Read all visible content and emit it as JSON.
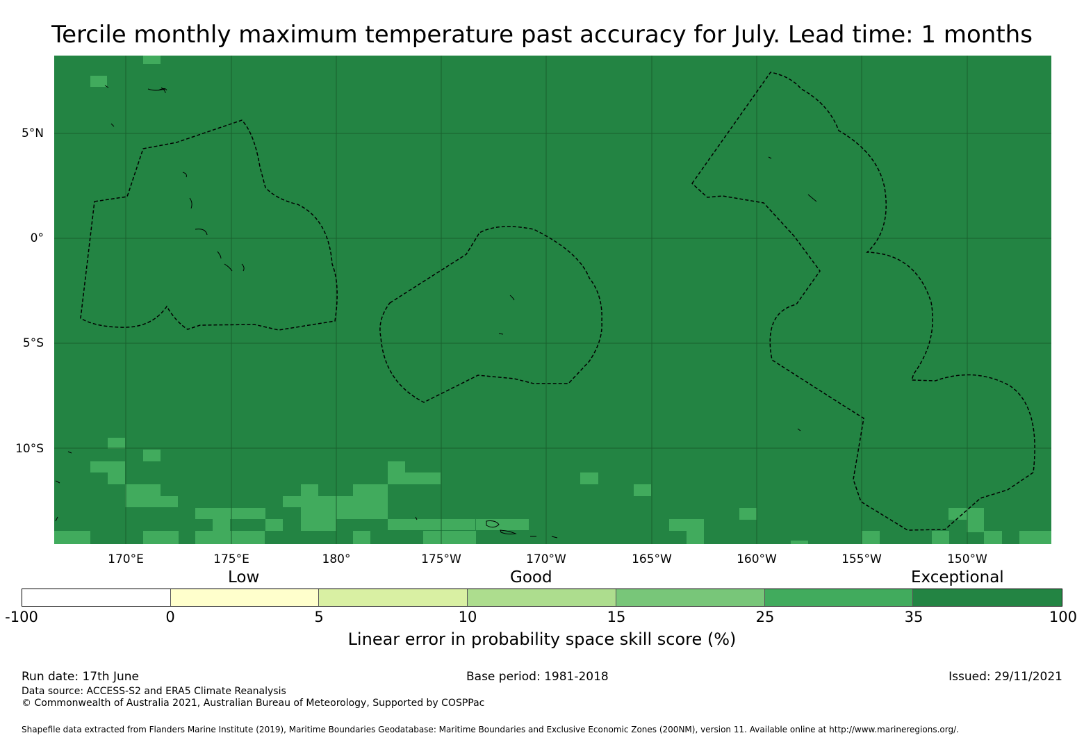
{
  "title": "Tercile monthly maximum temperature past accuracy for July. Lead time: 1 months",
  "map": {
    "lat_labels": [
      "5°N",
      "0°",
      "5°S",
      "10°S"
    ],
    "lon_labels": [
      "170°E",
      "175°E",
      "180°",
      "175°W",
      "170°W",
      "165°W",
      "160°W",
      "155°W",
      "150°W"
    ],
    "colors": {
      "exceptional": "#238443",
      "very_good": "#41ab5d",
      "graticule": "#1a5f2e"
    },
    "zone_outline": "dashed black maritime boundary (EEZ) lines"
  },
  "legend": {
    "categories": [
      "Low",
      "Good",
      "Exceptional"
    ],
    "segments": [
      {
        "from": "-100",
        "to": "0",
        "color": "#ffffff"
      },
      {
        "from": "0",
        "to": "5",
        "color": "#ffffcc"
      },
      {
        "from": "5",
        "to": "10",
        "color": "#d9f0a3"
      },
      {
        "from": "10",
        "to": "15",
        "color": "#addd8e"
      },
      {
        "from": "15",
        "to": "25",
        "color": "#78c679"
      },
      {
        "from": "25",
        "to": "35",
        "color": "#41ab5d"
      },
      {
        "from": "35",
        "to": "100",
        "color": "#238443"
      }
    ],
    "ticks": [
      "-100",
      "0",
      "5",
      "10",
      "15",
      "25",
      "35",
      "100"
    ],
    "label": "Linear error in probability space skill score (%)"
  },
  "footer": {
    "run_date": "Run date: 17th June",
    "base_period": "Base period: 1981-2018",
    "issued": "Issued: 29/11/2021",
    "data_source": "Data source: ACCESS-S2 and ERA5 Climate Reanalysis",
    "copyright": "© Commonwealth of Australia 2021, Australian Bureau of Meteorology, Supported by COSPPac",
    "shapefile": "Shapefile data extracted from Flanders Marine Institute (2019), Maritime Boundaries Geodatabase: Maritime Boundaries and Exclusive Economic Zones (200NM), version 11. Available online at http://www.marineregions.org/."
  }
}
